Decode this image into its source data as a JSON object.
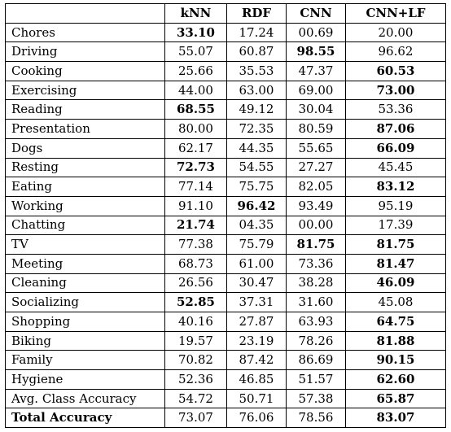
{
  "table": {
    "headers": [
      "",
      "kNN",
      "RDF",
      "CNN",
      "CNN+LF"
    ],
    "rows": [
      {
        "label": "Chores",
        "values": [
          "33.10",
          "17.24",
          "00.69",
          "20.00"
        ],
        "bold": [
          true,
          false,
          false,
          false
        ]
      },
      {
        "label": "Driving",
        "values": [
          "55.07",
          "60.87",
          "98.55",
          "96.62"
        ],
        "bold": [
          false,
          false,
          true,
          false
        ]
      },
      {
        "label": "Cooking",
        "values": [
          "25.66",
          "35.53",
          "47.37",
          "60.53"
        ],
        "bold": [
          false,
          false,
          false,
          true
        ]
      },
      {
        "label": "Exercising",
        "values": [
          "44.00",
          "63.00",
          "69.00",
          "73.00"
        ],
        "bold": [
          false,
          false,
          false,
          true
        ]
      },
      {
        "label": "Reading",
        "values": [
          "68.55",
          "49.12",
          "30.04",
          "53.36"
        ],
        "bold": [
          true,
          false,
          false,
          false
        ]
      },
      {
        "label": "Presentation",
        "values": [
          "80.00",
          "72.35",
          "80.59",
          "87.06"
        ],
        "bold": [
          false,
          false,
          false,
          true
        ]
      },
      {
        "label": "Dogs",
        "values": [
          "62.17",
          "44.35",
          "55.65",
          "66.09"
        ],
        "bold": [
          false,
          false,
          false,
          true
        ]
      },
      {
        "label": "Resting",
        "values": [
          "72.73",
          "54.55",
          "27.27",
          "45.45"
        ],
        "bold": [
          true,
          false,
          false,
          false
        ]
      },
      {
        "label": "Eating",
        "values": [
          "77.14",
          "75.75",
          "82.05",
          "83.12"
        ],
        "bold": [
          false,
          false,
          false,
          true
        ]
      },
      {
        "label": "Working",
        "values": [
          "91.10",
          "96.42",
          "93.49",
          "95.19"
        ],
        "bold": [
          false,
          true,
          false,
          false
        ]
      },
      {
        "label": "Chatting",
        "values": [
          "21.74",
          "04.35",
          "00.00",
          "17.39"
        ],
        "bold": [
          true,
          false,
          false,
          false
        ]
      },
      {
        "label": "TV",
        "values": [
          "77.38",
          "75.79",
          "81.75",
          "81.75"
        ],
        "bold": [
          false,
          false,
          true,
          true
        ]
      },
      {
        "label": "Meeting",
        "values": [
          "68.73",
          "61.00",
          "73.36",
          "81.47"
        ],
        "bold": [
          false,
          false,
          false,
          true
        ]
      },
      {
        "label": "Cleaning",
        "values": [
          "26.56",
          "30.47",
          "38.28",
          "46.09"
        ],
        "bold": [
          false,
          false,
          false,
          true
        ]
      },
      {
        "label": "Socializing",
        "values": [
          "52.85",
          "37.31",
          "31.60",
          "45.08"
        ],
        "bold": [
          true,
          false,
          false,
          false
        ]
      },
      {
        "label": "Shopping",
        "values": [
          "40.16",
          "27.87",
          "63.93",
          "64.75"
        ],
        "bold": [
          false,
          false,
          false,
          true
        ]
      },
      {
        "label": "Biking",
        "values": [
          "19.57",
          "23.19",
          "78.26",
          "81.88"
        ],
        "bold": [
          false,
          false,
          false,
          true
        ]
      },
      {
        "label": "Family",
        "values": [
          "70.82",
          "87.42",
          "86.69",
          "90.15"
        ],
        "bold": [
          false,
          false,
          false,
          true
        ]
      },
      {
        "label": "Hygiene",
        "values": [
          "52.36",
          "46.85",
          "51.57",
          "62.60"
        ],
        "bold": [
          false,
          false,
          false,
          true
        ]
      },
      {
        "label": "Avg. Class Accuracy",
        "values": [
          "54.72",
          "50.71",
          "57.38",
          "65.87"
        ],
        "bold": [
          false,
          false,
          false,
          true
        ]
      }
    ],
    "total": {
      "label": "Total Accuracy",
      "values": [
        "73.07",
        "76.06",
        "78.56",
        "83.07"
      ],
      "bold": [
        false,
        false,
        false,
        true
      ]
    }
  }
}
